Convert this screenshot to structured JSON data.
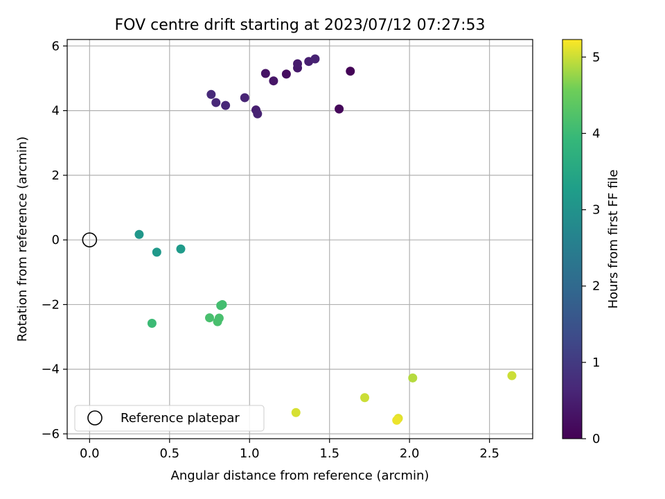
{
  "chart_data": {
    "type": "scatter",
    "title": "FOV centre drift starting at 2023/07/12 07:27:53",
    "xlabel": "Angular distance from reference (arcmin)",
    "ylabel": "Rotation from reference (arcmin)",
    "xlim": [
      -0.14,
      2.77
    ],
    "ylim": [
      -6.15,
      6.2
    ],
    "xticks": [
      0.0,
      0.5,
      1.0,
      1.5,
      2.0,
      2.5
    ],
    "xtick_labels": [
      "0.0",
      "0.5",
      "1.0",
      "1.5",
      "2.0",
      "2.5"
    ],
    "yticks": [
      -6,
      -4,
      -2,
      0,
      2,
      4,
      6
    ],
    "ytick_labels": [
      "−6",
      "−4",
      "−2",
      "0",
      "2",
      "4",
      "6"
    ],
    "grid": true,
    "colormap": "viridis",
    "colorbar": {
      "label": "Hours from first FF file",
      "range": [
        0,
        5.23
      ],
      "ticks": [
        0,
        1,
        2,
        3,
        4,
        5
      ],
      "tick_labels": [
        "0",
        "1",
        "2",
        "3",
        "4",
        "5"
      ]
    },
    "legend": {
      "placement": "lower-left",
      "entries": [
        {
          "label": "Reference platepar",
          "marker": "open-circle",
          "color": "#000000"
        }
      ]
    },
    "reference_point": {
      "x": 0.0,
      "y": 0.0
    },
    "points": [
      {
        "x": 1.63,
        "y": 5.22,
        "hours": 0.05
      },
      {
        "x": 1.56,
        "y": 4.05,
        "hours": 0.1
      },
      {
        "x": 1.23,
        "y": 5.13,
        "hours": 0.2
      },
      {
        "x": 1.1,
        "y": 5.15,
        "hours": 0.3
      },
      {
        "x": 1.15,
        "y": 4.92,
        "hours": 0.35
      },
      {
        "x": 1.3,
        "y": 5.32,
        "hours": 0.4
      },
      {
        "x": 1.3,
        "y": 5.45,
        "hours": 0.45
      },
      {
        "x": 1.37,
        "y": 5.52,
        "hours": 0.5
      },
      {
        "x": 1.41,
        "y": 5.6,
        "hours": 0.55
      },
      {
        "x": 1.04,
        "y": 4.02,
        "hours": 0.5
      },
      {
        "x": 1.05,
        "y": 3.9,
        "hours": 0.55
      },
      {
        "x": 0.97,
        "y": 4.4,
        "hours": 0.6
      },
      {
        "x": 0.85,
        "y": 4.16,
        "hours": 0.65
      },
      {
        "x": 0.79,
        "y": 4.25,
        "hours": 0.65
      },
      {
        "x": 0.76,
        "y": 4.5,
        "hours": 0.7
      },
      {
        "x": 0.31,
        "y": 0.17,
        "hours": 3.1
      },
      {
        "x": 0.42,
        "y": -0.38,
        "hours": 3.15
      },
      {
        "x": 0.57,
        "y": -0.28,
        "hours": 3.2
      },
      {
        "x": 0.82,
        "y": -2.03,
        "hours": 4.1
      },
      {
        "x": 0.83,
        "y": -2.0,
        "hours": 4.1
      },
      {
        "x": 0.75,
        "y": -2.41,
        "hours": 4.15
      },
      {
        "x": 0.81,
        "y": -2.42,
        "hours": 4.15
      },
      {
        "x": 0.8,
        "y": -2.53,
        "hours": 4.15
      },
      {
        "x": 0.39,
        "y": -2.58,
        "hours": 4.0
      },
      {
        "x": 1.29,
        "y": -5.34,
        "hours": 5.05
      },
      {
        "x": 1.72,
        "y": -4.88,
        "hours": 5.0
      },
      {
        "x": 2.02,
        "y": -4.27,
        "hours": 4.9
      },
      {
        "x": 1.93,
        "y": -5.52,
        "hours": 5.1
      },
      {
        "x": 1.92,
        "y": -5.58,
        "hours": 5.15
      },
      {
        "x": 2.64,
        "y": -4.2,
        "hours": 5.0
      }
    ]
  }
}
